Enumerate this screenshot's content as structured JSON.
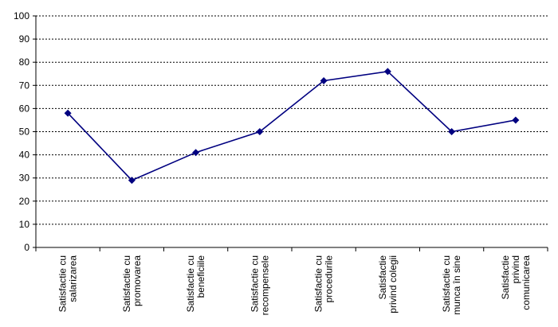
{
  "chart_data": {
    "type": "line",
    "title": "",
    "xlabel": "",
    "ylabel": "",
    "ylim": [
      0,
      100
    ],
    "yticks": [
      0,
      10,
      20,
      30,
      40,
      50,
      60,
      70,
      80,
      90,
      100
    ],
    "grid": "horizontal dashed",
    "legend": "none",
    "categories": [
      [
        "Satisfactie cu",
        "salarizarea"
      ],
      [
        "Satisfactie cu",
        "promovarea"
      ],
      [
        "Satisfactie cu",
        "beneficiile"
      ],
      [
        "Satisfactie cu",
        "recompensele"
      ],
      [
        "Satisfactie cu",
        "procedurile"
      ],
      [
        "Satisfactie",
        "privind colegii"
      ],
      [
        "Satisfactie cu",
        "munca în sine"
      ],
      [
        "Satisfactie",
        "privind",
        "comunicarea"
      ]
    ],
    "series": [
      {
        "values": [
          58,
          29,
          41,
          50,
          72,
          76,
          50,
          55
        ],
        "color": "#000080"
      }
    ]
  }
}
